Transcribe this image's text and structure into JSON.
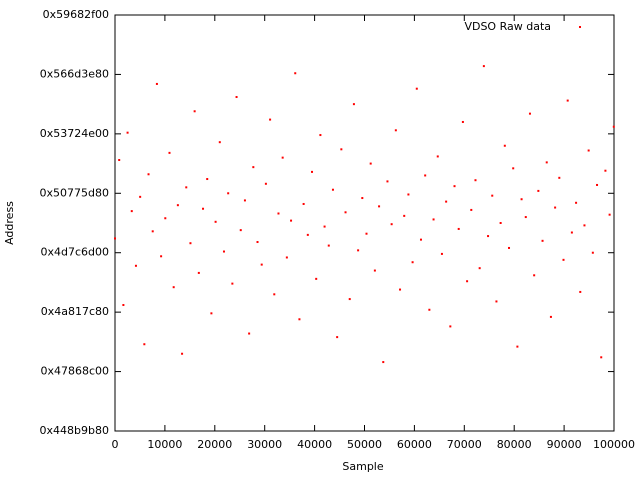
{
  "chart_data": {
    "type": "scatter",
    "xlabel": "Sample",
    "ylabel": "Address",
    "x": [
      0,
      840,
      1680,
      2520,
      3360,
      4200,
      5040,
      5880,
      6720,
      7560,
      8400,
      9240,
      10080,
      10920,
      11760,
      12600,
      13440,
      14280,
      15120,
      15960,
      16800,
      17640,
      18480,
      19320,
      20160,
      21000,
      21840,
      22680,
      23520,
      24360,
      25200,
      26040,
      26880,
      27720,
      28560,
      29400,
      30240,
      31080,
      31920,
      32760,
      33600,
      34440,
      35280,
      36120,
      36960,
      37800,
      38640,
      39480,
      40320,
      41160,
      42000,
      42840,
      43680,
      44520,
      45360,
      46200,
      47040,
      47880,
      48720,
      49560,
      50400,
      51240,
      52080,
      52920,
      53760,
      54600,
      55440,
      56280,
      57120,
      57960,
      58800,
      59640,
      60480,
      61320,
      62160,
      63000,
      63840,
      64680,
      65520,
      66360,
      67200,
      68040,
      68880,
      69720,
      70560,
      71400,
      72240,
      73080,
      73920,
      74760,
      75600,
      76440,
      77280,
      78120,
      78960,
      79800,
      80640,
      81480,
      82320,
      83160,
      84000,
      84840,
      85680,
      86520,
      87360,
      88200,
      89040,
      89880,
      90720,
      91560,
      92400,
      93240,
      94080,
      94920,
      95760,
      96600,
      97440,
      98280,
      99120,
      99960
    ],
    "series": [
      {
        "name": "VDSO Raw data",
        "color": "#ff0000",
        "values": [
          1312000000,
          1378000000,
          1256000000,
          1401000000,
          1335000000,
          1289000000,
          1347000000,
          1223000000,
          1366000000,
          1318000000,
          1442000000,
          1297000000,
          1329000000,
          1384000000,
          1271000000,
          1340000000,
          1215000000,
          1355000000,
          1308000000,
          1419000000,
          1283000000,
          1337000000,
          1362000000,
          1249000000,
          1326000000,
          1393000000,
          1301000000,
          1350000000,
          1274000000,
          1431000000,
          1319000000,
          1344000000,
          1232000000,
          1372000000,
          1309000000,
          1290000000,
          1358000000,
          1412000000,
          1265000000,
          1333000000,
          1380000000,
          1296000000,
          1327000000,
          1451000000,
          1244000000,
          1341000000,
          1315000000,
          1368000000,
          1278000000,
          1399000000,
          1322000000,
          1306000000,
          1353000000,
          1229000000,
          1387000000,
          1334000000,
          1261000000,
          1425000000,
          1302000000,
          1346000000,
          1316000000,
          1375000000,
          1285000000,
          1339000000,
          1208000000,
          1360000000,
          1324000000,
          1403000000,
          1269000000,
          1331000000,
          1349000000,
          1292000000,
          1438000000,
          1311000000,
          1365000000,
          1252000000,
          1328000000,
          1381000000,
          1299000000,
          1343000000,
          1238000000,
          1356000000,
          1320000000,
          1410000000,
          1276000000,
          1336000000,
          1361000000,
          1287000000,
          1457000000,
          1314000000,
          1348000000,
          1259000000,
          1325000000,
          1390000000,
          1304000000,
          1371000000,
          1221000000,
          1345000000,
          1330000000,
          1417000000,
          1281000000,
          1352000000,
          1310000000,
          1376000000,
          1246000000,
          1338000000,
          1363000000,
          1294000000,
          1428000000,
          1317000000,
          1342000000,
          1267000000,
          1323000000,
          1386000000,
          1300000000,
          1357000000,
          1212000000,
          1369000000,
          1332000000,
          1406000000
        ]
      }
    ],
    "xlim": [
      0,
      100000
    ],
    "xticks": [
      0,
      10000,
      20000,
      30000,
      40000,
      50000,
      60000,
      70000,
      80000,
      90000,
      100000
    ],
    "ylim": [
      1150000000,
      1500000000
    ],
    "yticks": [
      {
        "value": 1150000000,
        "label": "0x448b9b80"
      },
      {
        "value": 1200000000,
        "label": "0x47868c00"
      },
      {
        "value": 1250000000,
        "label": "0x4a817c80"
      },
      {
        "value": 1300000000,
        "label": "0x4d7c6d00"
      },
      {
        "value": 1350000000,
        "label": "0x50775d80"
      },
      {
        "value": 1400000000,
        "label": "0x53724e00"
      },
      {
        "value": 1450000000,
        "label": "0x566d3e80"
      },
      {
        "value": 1500000000,
        "label": "0x59682f00"
      }
    ],
    "legend": "top-right"
  }
}
